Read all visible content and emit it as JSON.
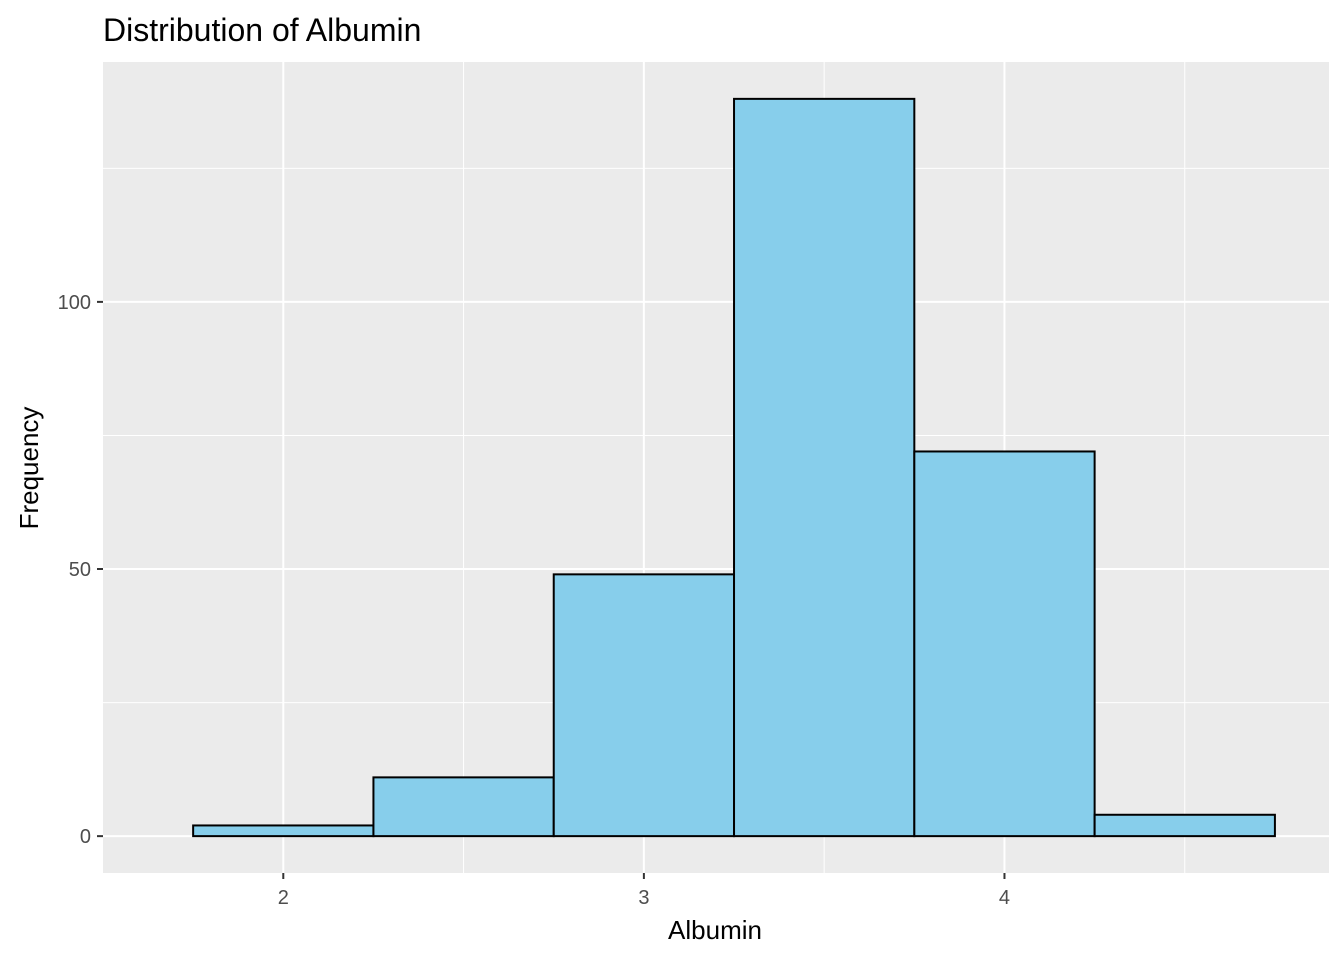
{
  "chart_data": {
    "type": "bar",
    "title": "Distribution of Albumin",
    "xlabel": "Albumin",
    "ylabel": "Frequency",
    "bins": [
      {
        "x0": 1.75,
        "x1": 2.25,
        "count": 2
      },
      {
        "x0": 2.25,
        "x1": 2.75,
        "count": 11
      },
      {
        "x0": 2.75,
        "x1": 3.25,
        "count": 49
      },
      {
        "x0": 3.25,
        "x1": 3.75,
        "count": 138
      },
      {
        "x0": 3.75,
        "x1": 4.25,
        "count": 72
      },
      {
        "x0": 4.25,
        "x1": 4.75,
        "count": 4
      }
    ],
    "xlim": [
      1.5,
      4.9
    ],
    "ylim": [
      -6.9,
      144.9
    ],
    "x_ticks": [
      2,
      3,
      4
    ],
    "x_tick_labels": [
      "2",
      "3",
      "4"
    ],
    "x_minor_ticks": [
      2.5,
      3.5,
      4.5
    ],
    "y_ticks": [
      0,
      50,
      100
    ],
    "y_tick_labels": [
      "0",
      "50",
      "100"
    ],
    "y_minor_ticks": [
      25,
      75,
      125
    ],
    "grid": true,
    "legend": "none",
    "colors": {
      "panel_background": "#EBEBEB",
      "grid": "#FFFFFF",
      "bar_fill": "#87CEEB",
      "bar_stroke": "#000000",
      "tick_text": "#4D4D4D"
    }
  }
}
